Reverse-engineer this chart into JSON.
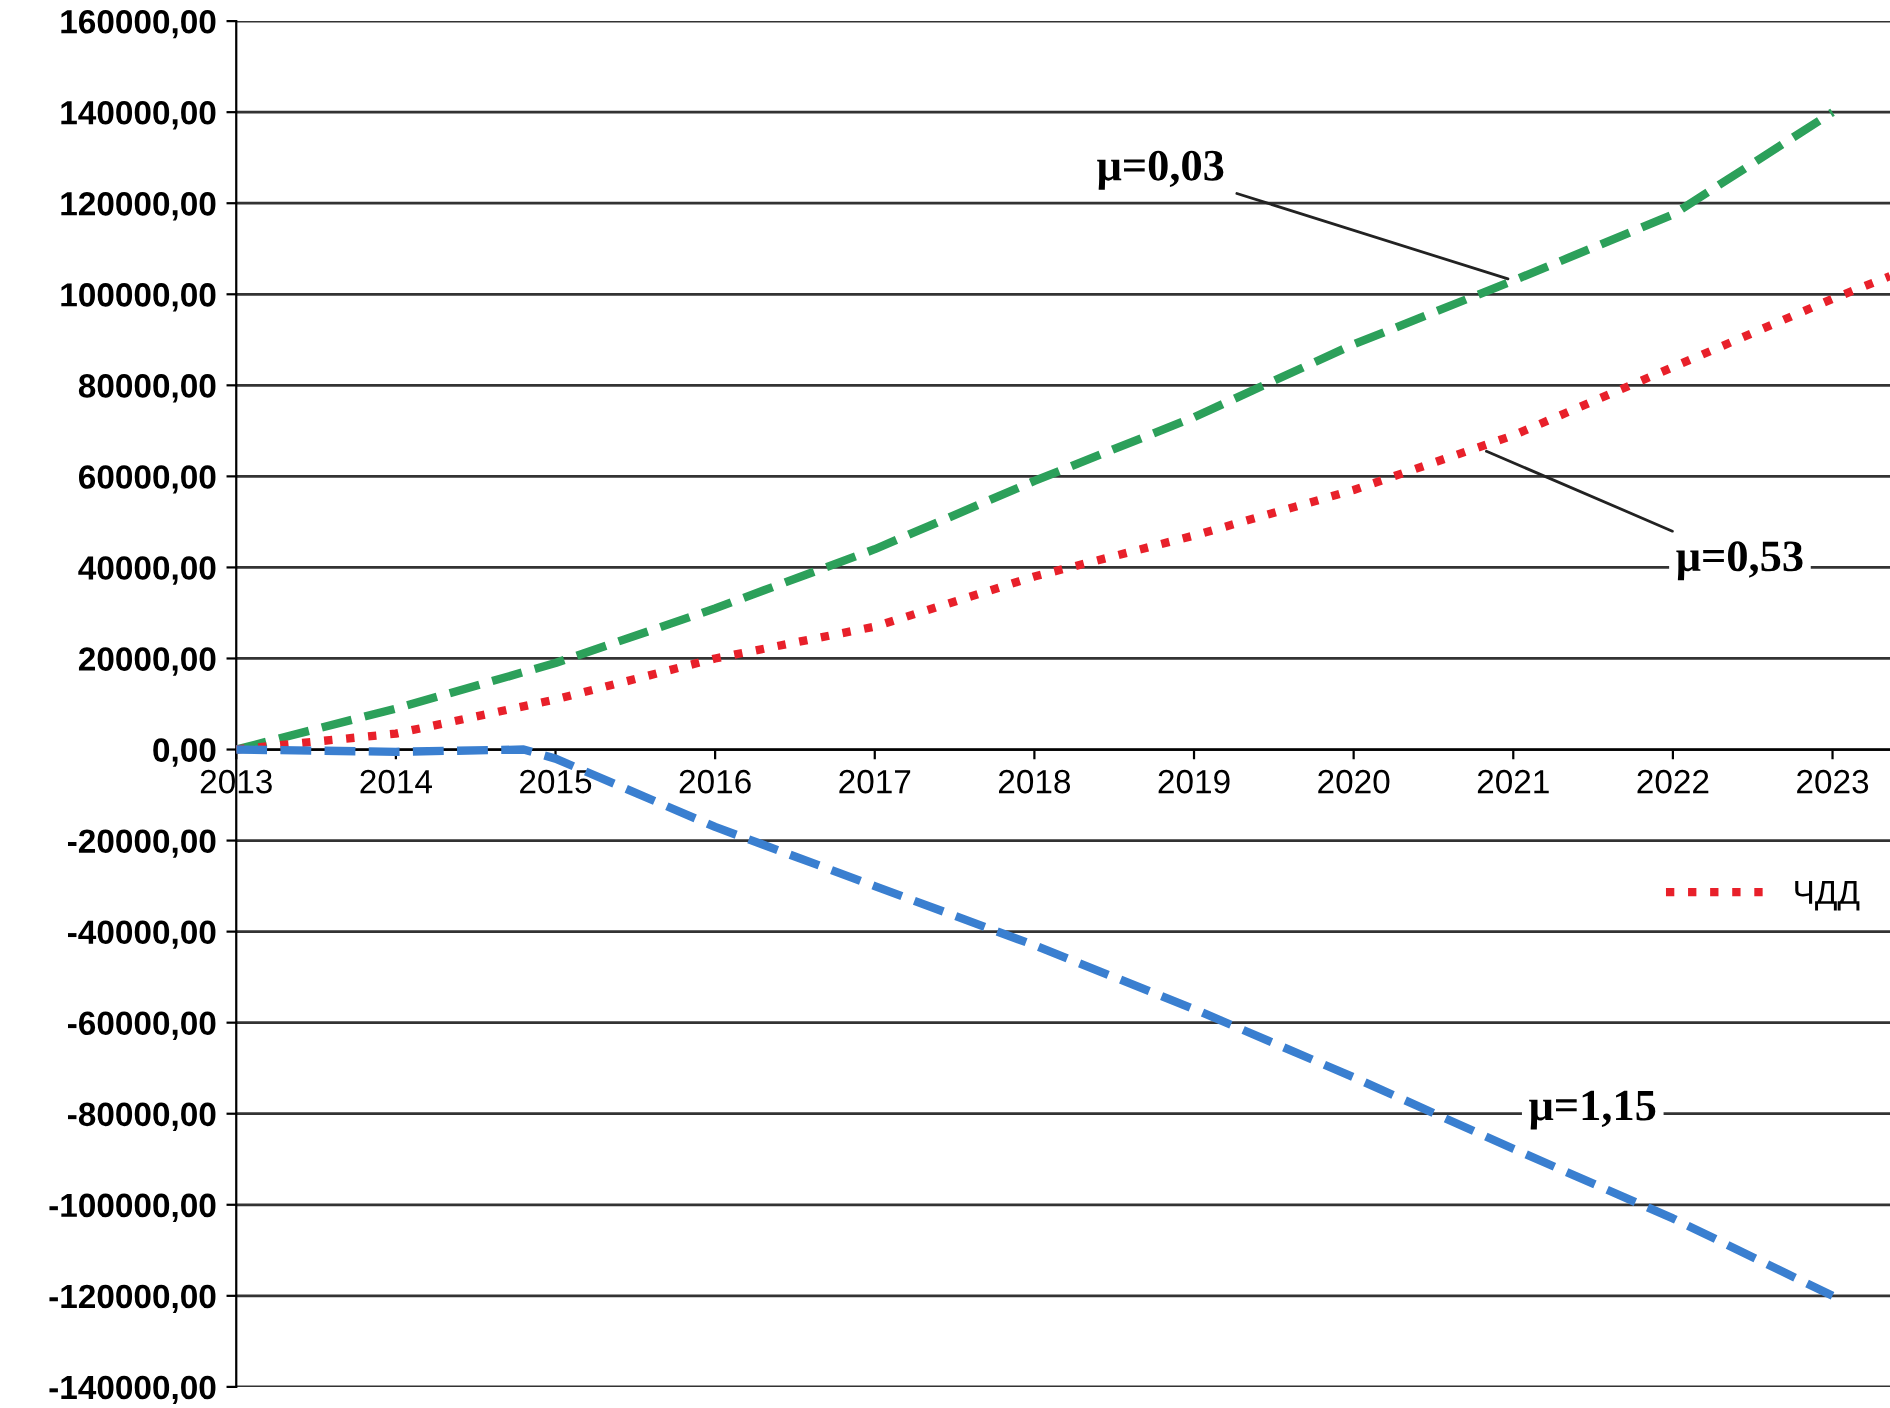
{
  "chart_data": {
    "type": "line",
    "x": [
      2013,
      2014,
      2015,
      2016,
      2017,
      2018,
      2019,
      2020,
      2021,
      2022,
      2023
    ],
    "xlim": [
      2013,
      2023.36
    ],
    "xticks": [
      2013,
      2014,
      2015,
      2016,
      2017,
      2018,
      2019,
      2020,
      2021,
      2022,
      2023
    ],
    "ylim": [
      -140000,
      160000
    ],
    "yticks": [
      {
        "value": -140000,
        "label": "-140000,00"
      },
      {
        "value": -120000,
        "label": "-120000,00"
      },
      {
        "value": -100000,
        "label": "-100000,00"
      },
      {
        "value": -80000,
        "label": "-80000,00"
      },
      {
        "value": -60000,
        "label": "-60000,00"
      },
      {
        "value": -40000,
        "label": "-40000,00"
      },
      {
        "value": -20000,
        "label": "-20000,00"
      },
      {
        "value": 0,
        "label": "0,00"
      },
      {
        "value": 20000,
        "label": "20000,00"
      },
      {
        "value": 40000,
        "label": "40000,00"
      },
      {
        "value": 60000,
        "label": "60000,00"
      },
      {
        "value": 80000,
        "label": "80000,00"
      },
      {
        "value": 100000,
        "label": "100000,00"
      },
      {
        "value": 120000,
        "label": "120000,00"
      },
      {
        "value": 140000,
        "label": "140000,00"
      },
      {
        "value": 160000,
        "label": "160000,00"
      }
    ],
    "grid": "y",
    "legend": "right",
    "series": [
      {
        "color": "#2ca05a",
        "line_style": "dashed",
        "values": [
          0,
          9000,
          19000,
          31000,
          44000,
          59000,
          73000,
          89000,
          103000,
          117500,
          140000
        ]
      },
      {
        "name": "ЧДД",
        "color": "#e8202a",
        "line_style": "dotted",
        "x": [
          2013,
          2014,
          2015,
          2016,
          2017,
          2018,
          2019,
          2020,
          2021,
          2022,
          2023,
          2023.36
        ],
        "values": [
          0,
          3500,
          11000,
          20000,
          27000,
          38000,
          47000,
          57000,
          69000,
          84000,
          99000,
          104000
        ]
      },
      {
        "color": "#3a7fd0",
        "line_style": "dashed",
        "x": [
          2013,
          2014,
          2014.8,
          2015,
          2016,
          2017,
          2018,
          2019,
          2020,
          2021,
          2022,
          2023
        ],
        "values": [
          0,
          -500,
          0,
          -2000,
          -17000,
          -30000,
          -43000,
          -57000,
          -72000,
          -87700,
          -103000,
          -120000
        ]
      }
    ],
    "annotations": [
      {
        "text": "μ=0,03",
        "x": 2021,
        "y": 103000
      },
      {
        "text": "μ=0,53",
        "x": 2020.8,
        "y": 66000
      },
      {
        "text": "μ=1,15",
        "x": 2020.4,
        "y": -76000
      }
    ]
  }
}
